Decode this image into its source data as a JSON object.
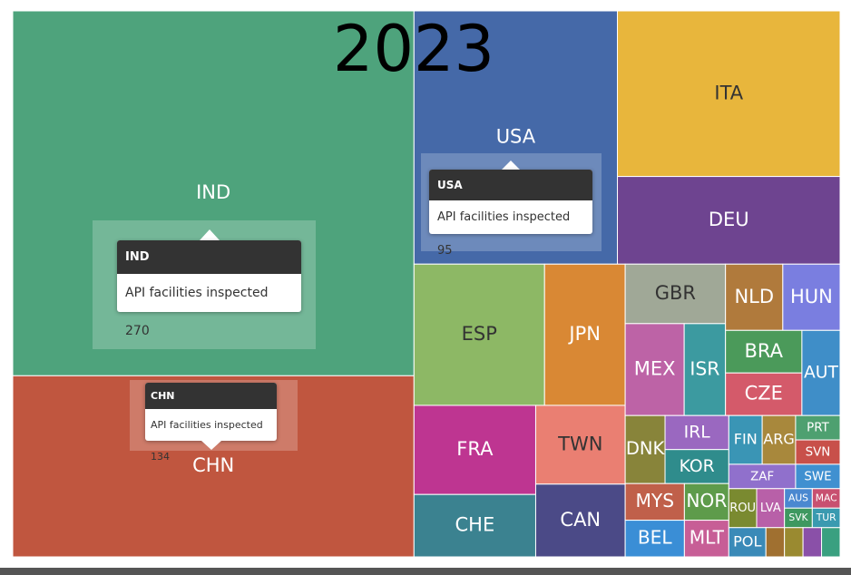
{
  "chart_data": {
    "type": "treemap",
    "title": "2023",
    "tooltip_label": "API facilities inspected",
    "categories": [
      "IND",
      "CHN",
      "USA",
      "ITA",
      "DEU",
      "ESP",
      "JPN",
      "FRA",
      "CHE",
      "TWN",
      "CAN",
      "GBR",
      "MEX",
      "ISR",
      "NLD",
      "HUN",
      "BRA",
      "CZE",
      "AUT",
      "DNK",
      "IRL",
      "KOR",
      "MYS",
      "BEL",
      "NOR",
      "MLT",
      "FIN",
      "ARG",
      "ZAF",
      "PRT",
      "SVN",
      "SWE",
      "ROU",
      "LVA",
      "POL",
      null,
      "AUS",
      "SVK",
      "MAC",
      "TUR",
      null,
      null,
      null
    ],
    "values": [
      270,
      134,
      95,
      68,
      36,
      34,
      21,
      20,
      14,
      13,
      12,
      11,
      10,
      7,
      7,
      7,
      6,
      6,
      6,
      5,
      4,
      4,
      4,
      4,
      3,
      3,
      3,
      3,
      3,
      2,
      2,
      2,
      2,
      2,
      2,
      1,
      1,
      1,
      1,
      1,
      1,
      1,
      1
    ],
    "colors": [
      "#4ea37c",
      "#c0563f",
      "#4569a8",
      "#e8b63c",
      "#6e4490",
      "#8db865",
      "#d98834",
      "#be3591",
      "#3b8290",
      "#ea7f72",
      "#4b4a87",
      "#a0a897",
      "#bd63a6",
      "#3c9aa0",
      "#b07a3c",
      "#7a7ee0",
      "#4b9a5a",
      "#d45a6a",
      "#3f8ec8",
      "#88843a",
      "#9a68c0",
      "#2f8c8c",
      "#c0604a",
      "#3a8ed6",
      "#5e9b4b",
      "#c75e96",
      "#3a95b5",
      "#a8883c",
      "#9070cc",
      "#4ea070",
      "#c8504a",
      "#4090d0",
      "#7a8a30",
      "#b860a8",
      "#3a8ab8",
      "#a07030",
      "#4a88d0",
      "#3e9860",
      "#c85070",
      "#3a9ab0",
      "#9a8a30",
      "#8a50a8",
      "#3aa080"
    ]
  }
}
